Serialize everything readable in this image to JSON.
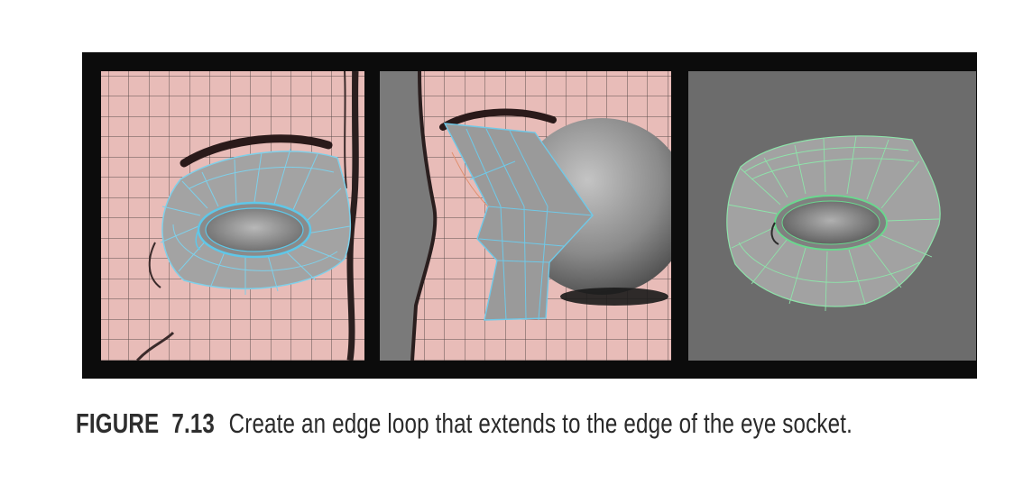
{
  "figure": {
    "label": "FIGURE",
    "number": "7.13",
    "caption_text": "Create an edge loop that extends to the edge of the eye socket."
  },
  "colors": {
    "frame": "#0c0c0c",
    "reference_pink": "#e8bcb8",
    "grid_line": "#5e4f4e",
    "viewport_gray": "#6c6c6c",
    "mesh_fill": "#9c9c9c",
    "wire_blue": "#5fc7e8",
    "wire_green": "#7fe0a0"
  },
  "panels": [
    {
      "name": "front-view",
      "icon": "front-view-eye-mesh"
    },
    {
      "name": "side-view",
      "icon": "side-view-eyeball-mesh"
    },
    {
      "name": "perspective-view",
      "icon": "perspective-eye-mesh"
    }
  ]
}
